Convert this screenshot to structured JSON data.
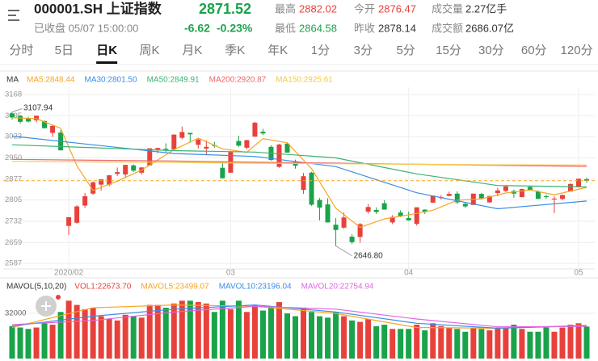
{
  "header": {
    "symbol": "000001.SH 上证指数",
    "price": "2871.52",
    "status": "已收盘 05/07 15:00:00",
    "change": "-6.62",
    "change_pct": "-0.23%",
    "stats": [
      {
        "label": "最高",
        "value": "2882.02"
      },
      {
        "label": "今开",
        "value": "2876.47"
      },
      {
        "label": "成交量",
        "value": "2.27亿手"
      },
      {
        "label": "最低",
        "value": "2864.58"
      },
      {
        "label": "昨收",
        "value": "2878.14"
      },
      {
        "label": "成交额",
        "value": "2686.07亿"
      }
    ]
  },
  "tabs": {
    "items": [
      "分时",
      "5日",
      "日K",
      "周K",
      "月K",
      "季K",
      "年K",
      "1分",
      "3分",
      "5分",
      "15分",
      "30分",
      "60分",
      "120分"
    ],
    "selected": 2
  },
  "chart_data": [
    {
      "type": "candlestick",
      "legend_title": "MA",
      "up_color": "#e8413b",
      "down_color": "#1aa34a",
      "grid": true,
      "ylim": [
        2568,
        3193
      ],
      "yticks": [
        3168,
        3095,
        3023,
        2950,
        2877,
        2805,
        2732,
        2659,
        2587
      ],
      "xlim": [
        -0.5,
        71.5
      ],
      "xticks": [
        {
          "value": 7,
          "label": "2020/02"
        },
        {
          "value": 27,
          "label": "03"
        },
        {
          "value": 49,
          "label": "04"
        },
        {
          "value": 70,
          "label": "05"
        }
      ],
      "high_label": "3107.94",
      "low_label": "2646.80",
      "open": [
        3103,
        3094,
        3085,
        3079,
        3077,
        3036,
        3037,
        2716,
        2727,
        2786,
        2827,
        2858,
        2858,
        2895,
        2893,
        2924,
        2899,
        2924,
        2979,
        2981,
        2979,
        3019,
        3036,
        2995,
        2982,
        2994,
        2916,
        2899,
        3008,
        2985,
        3023,
        3040,
        2988,
        2919,
        2999,
        2936,
        2840,
        2899,
        2805,
        2790,
        2720,
        2710,
        2679,
        2678,
        2765,
        2771,
        2794,
        2728,
        2762,
        2743,
        2723,
        2772,
        2796,
        2812,
        2819,
        2827,
        2792,
        2788,
        2826,
        2797,
        2829,
        2836,
        2836,
        2815,
        2850,
        2835,
        2818,
        2807,
        2809,
        2834,
        2850,
        2876.47
      ],
      "high": [
        3107.94,
        3095,
        3091,
        3095,
        3078,
        3063,
        3046,
        2746,
        2787,
        2829,
        2869,
        2876,
        2891,
        2917,
        2926,
        2928,
        2918,
        2983,
        2985,
        3000,
        3031,
        3058,
        3036,
        3017,
        3010,
        3005,
        2938,
        2973,
        3026,
        3012,
        3074,
        3050,
        2993,
        2998,
        3003,
        2944,
        2898,
        2902,
        2812,
        2811,
        2743,
        2762,
        2687,
        2726,
        2791,
        2780,
        2805,
        2753,
        2770,
        2765,
        2780,
        2773,
        2820,
        2822,
        2834,
        2835,
        2796,
        2827,
        2830,
        2820,
        2847,
        2853,
        2841,
        2844,
        2853,
        2839,
        2824,
        2818,
        2824,
        2863,
        2879,
        2882.02
      ],
      "low": [
        3082,
        3068,
        3072,
        3072,
        3052,
        3022,
        2975,
        2685,
        2723,
        2778,
        2823,
        2837,
        2852,
        2888,
        2881,
        2901,
        2892,
        2924,
        2966,
        2970,
        2975,
        3014,
        3002,
        2982,
        2961,
        2985,
        2879,
        2899,
        2988,
        2979,
        3022,
        3029,
        2940,
        2916,
        2968,
        2913,
        2826,
        2785,
        2735,
        2728,
        2646.8,
        2706,
        2654,
        2658,
        2758,
        2757,
        2772,
        2722,
        2746,
        2734,
        2717,
        2757,
        2796,
        2807,
        2818,
        2791,
        2778,
        2788,
        2807,
        2795,
        2818,
        2833,
        2813,
        2814,
        2837,
        2808,
        2809,
        2760,
        2804,
        2834,
        2848,
        2864.58
      ],
      "close": [
        3090,
        3074,
        3075,
        3095,
        3052,
        3060,
        2976,
        2746,
        2783,
        2818,
        2866,
        2876,
        2890,
        2901,
        2926,
        2906,
        2917,
        2983,
        2984,
        2975,
        3030,
        3039,
        3031,
        3013,
        2988,
        2991,
        2880,
        2970,
        2992,
        3011,
        3071,
        3034,
        2943,
        2996,
        2968,
        2923,
        2887,
        2789,
        2779,
        2728,
        2702,
        2745,
        2660,
        2722,
        2781,
        2764,
        2772,
        2747,
        2750,
        2735,
        2780,
        2764,
        2820,
        2815,
        2826,
        2797,
        2783,
        2827,
        2811,
        2819,
        2838,
        2852,
        2827,
        2843,
        2838,
        2809,
        2815,
        2810,
        2822,
        2860,
        2878,
        2871.52
      ],
      "series": [
        {
          "name": "MA5:2848.44",
          "color": "#f5a623",
          "x": [
            0,
            3,
            6,
            8,
            10,
            13,
            16,
            20,
            23,
            26,
            29,
            31,
            34,
            37,
            40,
            43,
            46,
            49,
            52,
            55,
            58,
            61,
            64,
            67,
            71
          ],
          "values": [
            3088,
            3085,
            3052,
            2923,
            2838,
            2870,
            2908,
            2978,
            3018,
            2981,
            2969,
            3016,
            3002,
            2913,
            2777,
            2711,
            2740,
            2754,
            2770,
            2804,
            2809,
            2829,
            2840,
            2823,
            2848.44
          ]
        },
        {
          "name": "MA30:2801.50",
          "color": "#3a8ee6",
          "x": [
            0,
            10,
            20,
            30,
            40,
            50,
            60,
            71
          ],
          "values": [
            3025,
            2995,
            2965,
            2955,
            2920,
            2830,
            2775,
            2801.5
          ]
        },
        {
          "name": "MA50:2849.91",
          "color": "#3cb371",
          "x": [
            0,
            10,
            20,
            30,
            40,
            50,
            60,
            71
          ],
          "values": [
            2995,
            2985,
            2975,
            2970,
            2950,
            2895,
            2855,
            2849.91
          ]
        },
        {
          "name": "MA200:2920.87",
          "color": "#ee6666",
          "x": [
            0,
            10,
            20,
            30,
            40,
            50,
            60,
            71
          ],
          "values": [
            2945,
            2942,
            2939,
            2935,
            2932,
            2928,
            2924,
            2920.87
          ]
        },
        {
          "name": "MA150:2925.61",
          "color": "#f3c94c",
          "x": [
            0,
            10,
            20,
            30,
            40,
            50,
            60,
            71
          ],
          "values": [
            2938,
            2936,
            2934,
            2932,
            2930,
            2928,
            2926,
            2925.61
          ]
        }
      ]
    },
    {
      "type": "bar",
      "legend_title": "MAVOL(5,10,20)",
      "vol_label": "VOL1:22673.70",
      "vol_label_color": "#e8413b",
      "ylim": [
        0,
        46900
      ],
      "yticks": [
        32000
      ],
      "values": [
        23000,
        22000,
        21000,
        22000,
        25000,
        24000,
        33000,
        41000,
        38000,
        35000,
        36000,
        30000,
        28000,
        27000,
        31000,
        30000,
        29000,
        38000,
        38000,
        36000,
        39000,
        41000,
        41000,
        40000,
        39000,
        33000,
        41000,
        35000,
        41000,
        33000,
        38000,
        34000,
        36000,
        40000,
        32000,
        30000,
        36000,
        33000,
        30000,
        29000,
        33000,
        30000,
        27000,
        26000,
        28000,
        23000,
        24000,
        21000,
        21000,
        21000,
        24000,
        20000,
        25000,
        23000,
        22000,
        21000,
        19000,
        22000,
        21000,
        20000,
        22000,
        22000,
        24000,
        21000,
        19000,
        19000,
        22000,
        19000,
        22000,
        24000,
        25000,
        22673.7
      ],
      "series": [
        {
          "name": "MAVOL5:23499.07",
          "color": "#f5a623",
          "x": [
            0,
            10,
            20,
            30,
            40,
            50,
            60,
            71
          ],
          "values": [
            22000,
            36000,
            38000,
            37000,
            32000,
            22000,
            21500,
            23499.07
          ]
        },
        {
          "name": "MAVOL10:23196.04",
          "color": "#3a8ee6",
          "x": [
            0,
            10,
            20,
            30,
            40,
            50,
            60,
            71
          ],
          "values": [
            23000,
            30000,
            35000,
            38000,
            33000,
            25000,
            21500,
            23196.04
          ]
        },
        {
          "name": "MAVOL20:22754.94",
          "color": "#e066e0",
          "x": [
            0,
            10,
            20,
            30,
            40,
            50,
            60,
            71
          ],
          "values": [
            24000,
            27000,
            33000,
            37000,
            35000,
            28000,
            22500,
            22754.94
          ]
        }
      ]
    }
  ]
}
